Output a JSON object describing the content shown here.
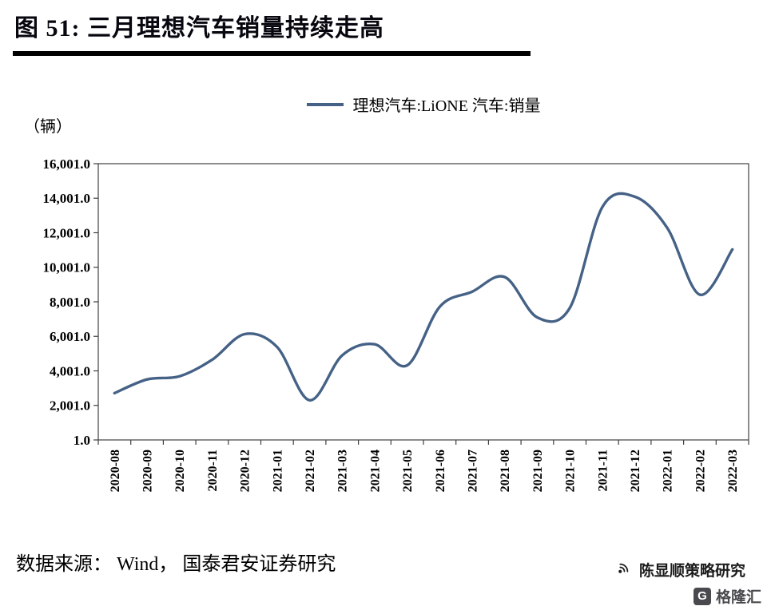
{
  "title": "图 51:  三月理想汽车销量持续走高",
  "legend": {
    "label": "理想汽车:LiONE 汽车:销量"
  },
  "source": "数据来源： Wind， 国泰君安证券研究",
  "branding": {
    "account_name": "陈显顺策略研究",
    "logo_text": "格隆汇",
    "logo_glyph": "G"
  },
  "colors": {
    "line": "#456286",
    "axis": "#3f3f3f"
  },
  "chart_data": {
    "type": "line",
    "title": "三月理想汽车销量持续走高",
    "unit": "（辆）",
    "legend_position": "top-center",
    "grid": false,
    "smooth": true,
    "x": [
      "2020-08",
      "2020-09",
      "2020-10",
      "2020-11",
      "2020-12",
      "2021-01",
      "2021-02",
      "2021-03",
      "2021-04",
      "2021-05",
      "2021-06",
      "2021-07",
      "2021-08",
      "2021-09",
      "2021-10",
      "2021-11",
      "2021-12",
      "2022-01",
      "2022-02",
      "2022-03"
    ],
    "series": [
      {
        "name": "理想汽车:LiONE 汽车:销量",
        "values": [
          2711,
          3504,
          3692,
          4646,
          6126,
          5379,
          2300,
          4900,
          5539,
          4323,
          7713,
          8589,
          9433,
          7094,
          7649,
          13485,
          14087,
          12268,
          8414,
          11034
        ]
      }
    ],
    "ylim": [
      1,
      16001
    ],
    "yticks": [
      "16,001.0",
      "14,001.0",
      "12,001.0",
      "10,001.0",
      "8,001.0",
      "6,001.0",
      "4,001.0",
      "2,001.0",
      "1.0"
    ]
  }
}
